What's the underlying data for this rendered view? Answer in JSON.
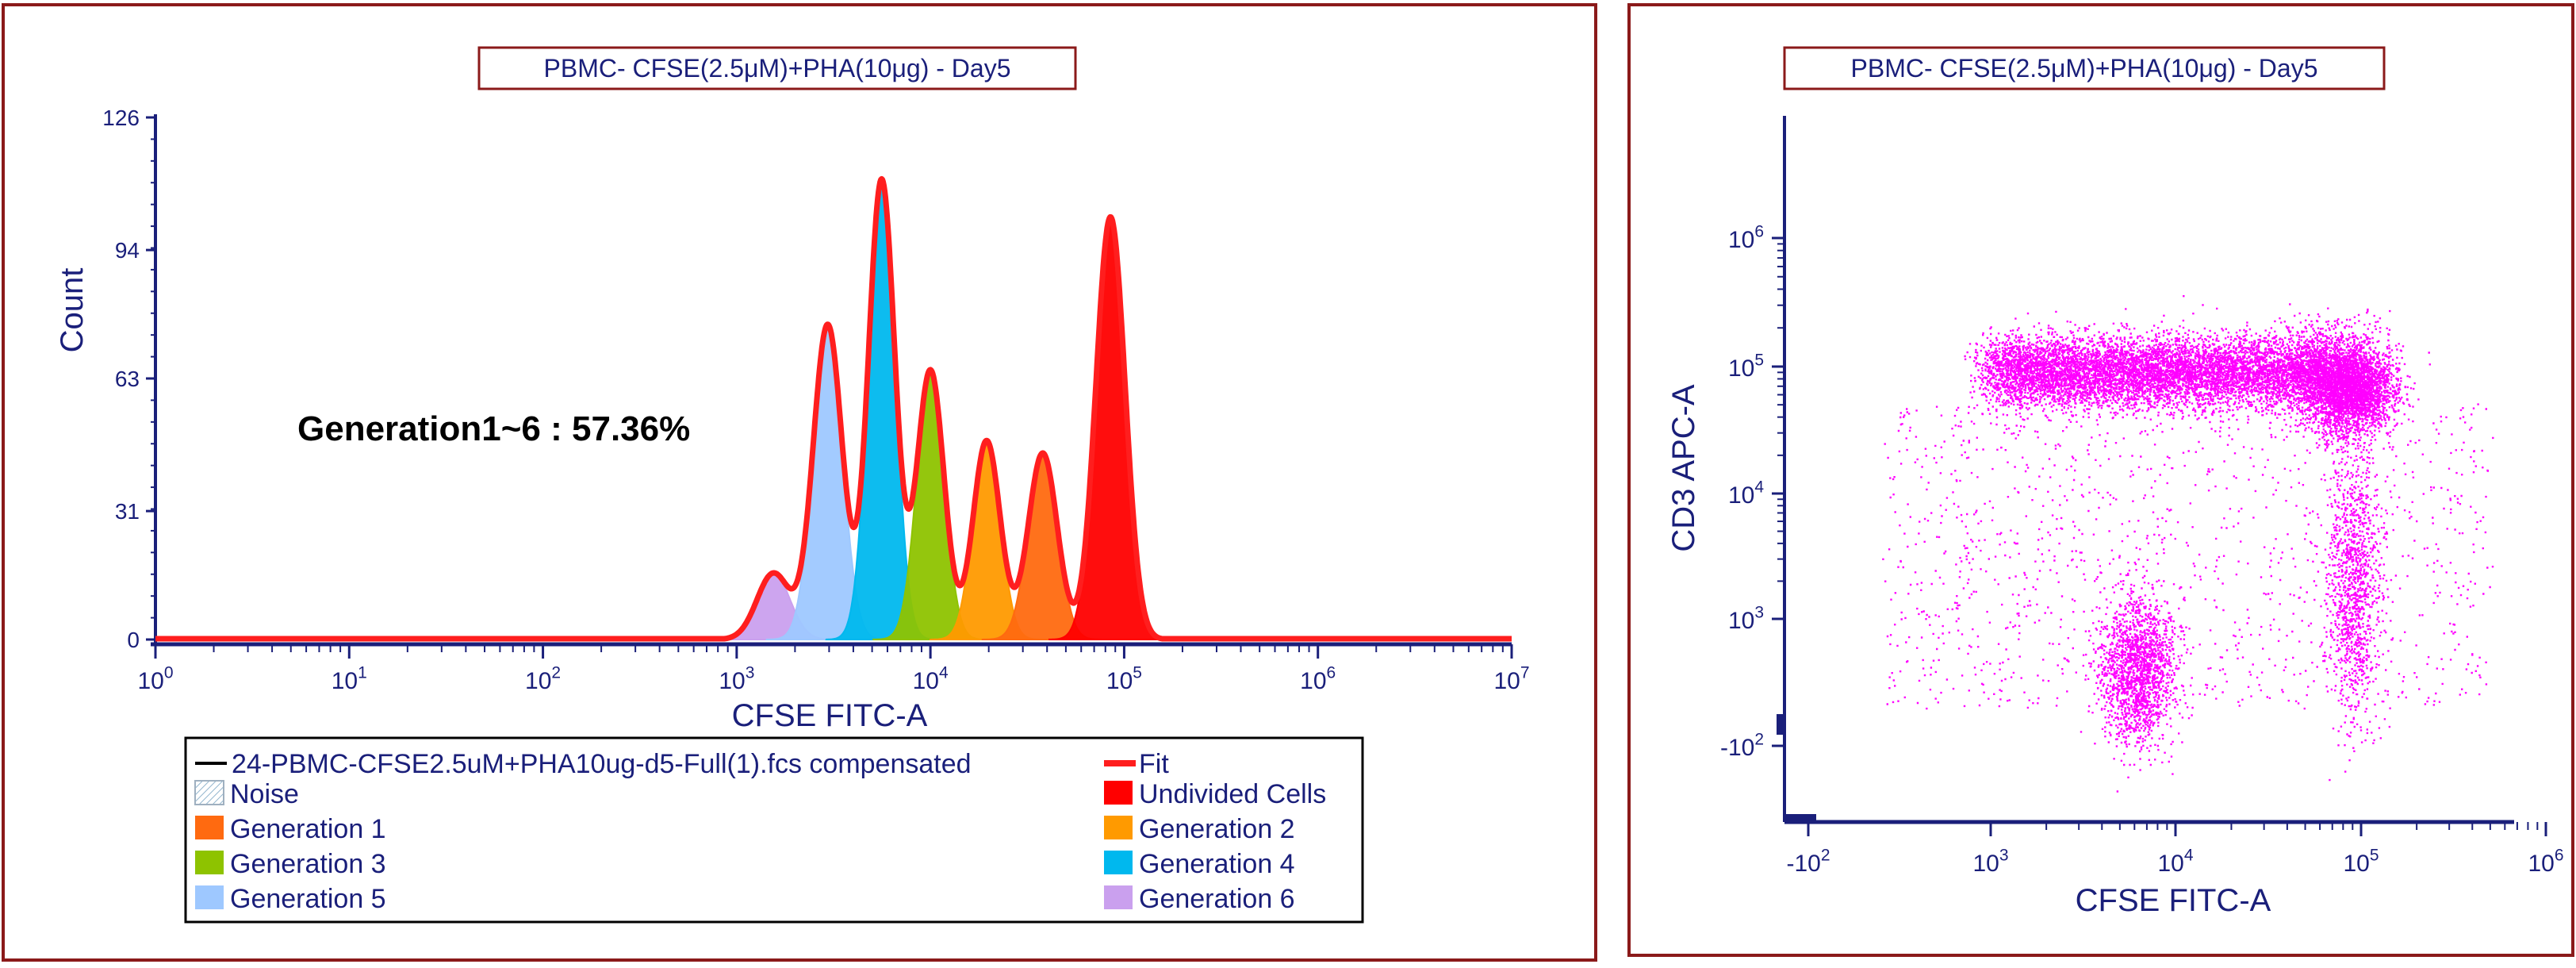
{
  "colors": {
    "frame": "#8b1a1a",
    "axis": "#1a1f7a",
    "label": "#1a1f7a",
    "fit": "#ff1e1e",
    "dots": "#ff00ff",
    "undivided": "#ff0000",
    "gen1": "#ff6a10",
    "gen2": "#ff9a00",
    "gen3": "#8ec300",
    "gen4": "#00b8ee",
    "gen5": "#9ec8ff",
    "gen6": "#caa0ee"
  },
  "histogram": {
    "title": "PBMC- CFSE(2.5μM)+PHA(10μg) - Day5",
    "annotation": "Generation1~6 : 57.36%",
    "legend": {
      "file_label": "24-PBMC-CFSE2.5uM+PHA10ug-d5-Full(1).fcs compensated",
      "fit_label": "Fit",
      "noise_label": "Noise",
      "undivided_label": "Undivided Cells",
      "gen1_label": "Generation 1",
      "gen2_label": "Generation 2",
      "gen3_label": "Generation 3",
      "gen4_label": "Generation 4",
      "gen5_label": "Generation 5",
      "gen6_label": "Generation 6"
    }
  },
  "dotplot": {
    "title": "PBMC- CFSE(2.5μM)+PHA(10μg) - Day5"
  },
  "chart_data": [
    {
      "type": "area",
      "title": "PBMC- CFSE(2.5μM)+PHA(10μg) - Day5",
      "xlabel": "CFSE FITC-A",
      "ylabel": "Count",
      "x_scale": "log",
      "xlim": [
        1,
        10000000
      ],
      "ylim": [
        0,
        126
      ],
      "x_ticks": [
        {
          "base": "10",
          "exp": "0"
        },
        {
          "base": "10",
          "exp": "1"
        },
        {
          "base": "10",
          "exp": "2"
        },
        {
          "base": "10",
          "exp": "3"
        },
        {
          "base": "10",
          "exp": "4"
        },
        {
          "base": "10",
          "exp": "5"
        },
        {
          "base": "10",
          "exp": "6"
        },
        {
          "base": "10",
          "exp": "7"
        }
      ],
      "y_ticks": [
        "0",
        "31",
        "63",
        "94",
        "126"
      ],
      "peaks": [
        {
          "name": "Generation 6",
          "color_key": "gen6",
          "center": 1550,
          "height": 16,
          "width_log": 0.085
        },
        {
          "name": "Generation 5",
          "color_key": "gen5",
          "center": 2950,
          "height": 76,
          "width_log": 0.075
        },
        {
          "name": "Generation 4",
          "color_key": "gen4",
          "center": 5600,
          "height": 111,
          "width_log": 0.068
        },
        {
          "name": "Generation 3",
          "color_key": "gen3",
          "center": 10000,
          "height": 65,
          "width_log": 0.07
        },
        {
          "name": "Generation 2",
          "color_key": "gen2",
          "center": 19500,
          "height": 48,
          "width_log": 0.07
        },
        {
          "name": "Generation 1",
          "color_key": "gen1",
          "center": 38000,
          "height": 45,
          "width_log": 0.075
        },
        {
          "name": "Undivided Cells",
          "color_key": "undivided",
          "center": 85000,
          "height": 102,
          "width_log": 0.075
        }
      ],
      "fit_series_name": "Fit",
      "annotation": "Generation1~6 : 57.36%"
    },
    {
      "type": "scatter",
      "title": "PBMC- CFSE(2.5μM)+PHA(10μg) - Day5",
      "xlabel": "CFSE FITC-A",
      "ylabel": "CD3 APC-A",
      "x_scale": "biexponential",
      "y_scale": "biexponential",
      "x_ticks": [
        {
          "base": "-10",
          "exp": "2"
        },
        {
          "base": "10",
          "exp": "3"
        },
        {
          "base": "10",
          "exp": "4"
        },
        {
          "base": "10",
          "exp": "5"
        },
        {
          "base": "10",
          "exp": "6"
        }
      ],
      "y_ticks": [
        {
          "base": "-10",
          "exp": "2"
        },
        {
          "base": "10",
          "exp": "3"
        },
        {
          "base": "10",
          "exp": "4"
        },
        {
          "base": "10",
          "exp": "5"
        },
        {
          "base": "10",
          "exp": "6"
        }
      ],
      "populations": [
        {
          "label": "CD3+ band",
          "cfse_range": [
            1000,
            100000
          ],
          "cd3_center": 100000
        },
        {
          "label": "CD3- low CFSE cluster",
          "cfse_center": 6000,
          "cd3_center": 500
        },
        {
          "label": "CD3 dim undivided",
          "cfse_center": 70000,
          "cd3_center": 2000
        }
      ]
    }
  ]
}
